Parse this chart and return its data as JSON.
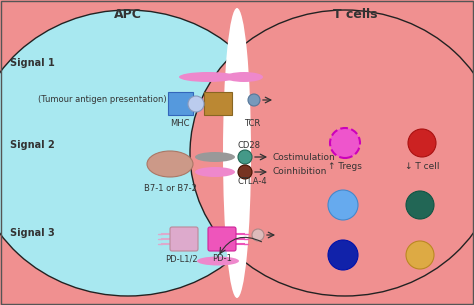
{
  "bg_apc_color": "#a8e8f0",
  "bg_tcell_color": "#f09090",
  "apc_label": "APC",
  "tcell_label": "T cells",
  "signal1_label": "Signal 1",
  "signal2_label": "Signal 2",
  "signal3_label": "Signal 3",
  "tumour_label": "(Tumour antigen presentation)",
  "mhc_label": "MHC",
  "tcr_label": "TCR",
  "b7_label": "B7-1 or B7-2",
  "cd28_label": "CD28",
  "ctla4_label": "CTLA-4",
  "pdl12_label": "PD-L1/2",
  "pd1_label": "PD-1",
  "costim_label": "Costimulation",
  "coinh_label": "Coinhibition",
  "tregs_label": "↑ Tregs",
  "tcell_label2": "↓ T cell",
  "text_color": "#333333",
  "mhc_color": "#5599dd",
  "tcr_color": "#bb8833",
  "tcr_ball_color": "#7799bb",
  "mhc_ball_color": "#aabbdd",
  "b7_color": "#cc9988",
  "cd28_color": "#449988",
  "ctla4_color": "#773322",
  "pdl_color": "#ddaacc",
  "pd1_color": "#ee55bb",
  "pd1_ball_color": "#ddbbbb",
  "signal_bar_pink": "#ee88cc",
  "signal_bar_gray": "#999999",
  "tregs_circle_color": "#ee55cc",
  "tregs_border_color": "#cc00bb",
  "tcell_red_color": "#cc2222",
  "cell_blue_light": "#66aaee",
  "cell_teal": "#226655",
  "cell_navy": "#1122aa",
  "cell_orange": "#ddaa44",
  "arrow_color": "#333333",
  "white_gap": "#ffffff",
  "dark_border": "#222222"
}
